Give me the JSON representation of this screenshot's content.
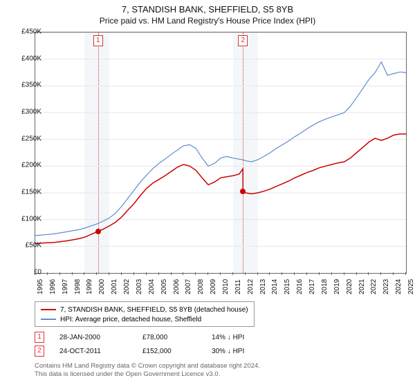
{
  "title": "7, STANDISH BANK, SHEFFIELD, S5 8YB",
  "subtitle": "Price paid vs. HM Land Registry's House Price Index (HPI)",
  "chart": {
    "type": "line",
    "background_color": "#ffffff",
    "grid_color": "#e6e6e6",
    "axis_color": "#666666",
    "y_axis": {
      "min": 0,
      "max": 450000,
      "tick_step": 50000,
      "labels": [
        "£0",
        "£50K",
        "£100K",
        "£150K",
        "£200K",
        "£250K",
        "£300K",
        "£350K",
        "£400K",
        "£450K"
      ]
    },
    "x_axis": {
      "min": 1995,
      "max": 2025,
      "labels": [
        "1995",
        "1996",
        "1997",
        "1998",
        "1999",
        "2000",
        "2001",
        "2002",
        "2003",
        "2004",
        "2005",
        "2006",
        "2007",
        "2008",
        "2009",
        "2010",
        "2011",
        "2012",
        "2013",
        "2014",
        "2015",
        "2016",
        "2017",
        "2018",
        "2019",
        "2020",
        "2021",
        "2022",
        "2023",
        "2024",
        "2025"
      ]
    },
    "shaded_regions": [
      {
        "x_start": 1999.0,
        "x_end": 2001.0,
        "color": "#eef3f8"
      },
      {
        "x_start": 2011.0,
        "x_end": 2013.0,
        "color": "#eef3f8"
      }
    ],
    "markers": [
      {
        "index": "1",
        "x": 2000.08,
        "y": 78000,
        "box_color": "#d33333",
        "dot_color": "#cc0000"
      },
      {
        "index": "2",
        "x": 2011.81,
        "y": 152000,
        "box_color": "#d33333",
        "dot_color": "#cc0000"
      }
    ],
    "series": [
      {
        "name": "property",
        "label": "7, STANDISH BANK, SHEFFIELD, S5 8YB (detached house)",
        "color": "#cc0000",
        "line_width": 1.5,
        "data": [
          [
            1995.0,
            55000
          ],
          [
            1995.5,
            56000
          ],
          [
            1996.0,
            56500
          ],
          [
            1996.5,
            57000
          ],
          [
            1997.0,
            58500
          ],
          [
            1997.5,
            60000
          ],
          [
            1998.0,
            62000
          ],
          [
            1998.5,
            64000
          ],
          [
            1999.0,
            67000
          ],
          [
            1999.5,
            72000
          ],
          [
            2000.0,
            77000
          ],
          [
            2000.08,
            78000
          ],
          [
            2000.5,
            82000
          ],
          [
            2001.0,
            88000
          ],
          [
            2001.5,
            95000
          ],
          [
            2002.0,
            105000
          ],
          [
            2002.5,
            118000
          ],
          [
            2003.0,
            130000
          ],
          [
            2003.5,
            145000
          ],
          [
            2004.0,
            158000
          ],
          [
            2004.5,
            168000
          ],
          [
            2005.0,
            175000
          ],
          [
            2005.5,
            182000
          ],
          [
            2006.0,
            190000
          ],
          [
            2006.5,
            198000
          ],
          [
            2007.0,
            203000
          ],
          [
            2007.5,
            200000
          ],
          [
            2008.0,
            192000
          ],
          [
            2008.5,
            178000
          ],
          [
            2009.0,
            165000
          ],
          [
            2009.5,
            170000
          ],
          [
            2010.0,
            178000
          ],
          [
            2010.5,
            180000
          ],
          [
            2011.0,
            182000
          ],
          [
            2011.5,
            185000
          ],
          [
            2011.8,
            195000
          ],
          [
            2011.81,
            152000
          ],
          [
            2012.0,
            150000
          ],
          [
            2012.5,
            148000
          ],
          [
            2013.0,
            150000
          ],
          [
            2013.5,
            153000
          ],
          [
            2014.0,
            157000
          ],
          [
            2014.5,
            162000
          ],
          [
            2015.0,
            167000
          ],
          [
            2015.5,
            172000
          ],
          [
            2016.0,
            178000
          ],
          [
            2016.5,
            183000
          ],
          [
            2017.0,
            188000
          ],
          [
            2017.5,
            192000
          ],
          [
            2018.0,
            197000
          ],
          [
            2018.5,
            200000
          ],
          [
            2019.0,
            203000
          ],
          [
            2019.5,
            206000
          ],
          [
            2020.0,
            208000
          ],
          [
            2020.5,
            215000
          ],
          [
            2021.0,
            225000
          ],
          [
            2021.5,
            235000
          ],
          [
            2022.0,
            245000
          ],
          [
            2022.5,
            252000
          ],
          [
            2023.0,
            248000
          ],
          [
            2023.5,
            252000
          ],
          [
            2024.0,
            258000
          ],
          [
            2024.5,
            260000
          ],
          [
            2025.0,
            260000
          ]
        ]
      },
      {
        "name": "hpi",
        "label": "HPI: Average price, detached house, Sheffield",
        "color": "#5b8dce",
        "line_width": 1.2,
        "data": [
          [
            1995.0,
            70000
          ],
          [
            1995.5,
            71000
          ],
          [
            1996.0,
            72000
          ],
          [
            1996.5,
            73000
          ],
          [
            1997.0,
            75000
          ],
          [
            1997.5,
            77000
          ],
          [
            1998.0,
            79000
          ],
          [
            1998.5,
            81000
          ],
          [
            1999.0,
            84000
          ],
          [
            1999.5,
            88000
          ],
          [
            2000.0,
            92000
          ],
          [
            2000.5,
            97000
          ],
          [
            2001.0,
            103000
          ],
          [
            2001.5,
            112000
          ],
          [
            2002.0,
            125000
          ],
          [
            2002.5,
            140000
          ],
          [
            2003.0,
            155000
          ],
          [
            2003.5,
            170000
          ],
          [
            2004.0,
            183000
          ],
          [
            2004.5,
            195000
          ],
          [
            2005.0,
            205000
          ],
          [
            2005.5,
            213000
          ],
          [
            2006.0,
            222000
          ],
          [
            2006.5,
            230000
          ],
          [
            2007.0,
            238000
          ],
          [
            2007.5,
            240000
          ],
          [
            2008.0,
            233000
          ],
          [
            2008.5,
            215000
          ],
          [
            2009.0,
            200000
          ],
          [
            2009.5,
            205000
          ],
          [
            2010.0,
            215000
          ],
          [
            2010.5,
            218000
          ],
          [
            2011.0,
            215000
          ],
          [
            2011.5,
            213000
          ],
          [
            2011.81,
            212000
          ],
          [
            2012.0,
            210000
          ],
          [
            2012.5,
            208000
          ],
          [
            2013.0,
            212000
          ],
          [
            2013.5,
            218000
          ],
          [
            2014.0,
            225000
          ],
          [
            2014.5,
            233000
          ],
          [
            2015.0,
            240000
          ],
          [
            2015.5,
            247000
          ],
          [
            2016.0,
            255000
          ],
          [
            2016.5,
            262000
          ],
          [
            2017.0,
            270000
          ],
          [
            2017.5,
            277000
          ],
          [
            2018.0,
            283000
          ],
          [
            2018.5,
            288000
          ],
          [
            2019.0,
            292000
          ],
          [
            2019.5,
            296000
          ],
          [
            2020.0,
            300000
          ],
          [
            2020.5,
            312000
          ],
          [
            2021.0,
            328000
          ],
          [
            2021.5,
            345000
          ],
          [
            2022.0,
            362000
          ],
          [
            2022.5,
            375000
          ],
          [
            2023.0,
            395000
          ],
          [
            2023.5,
            370000
          ],
          [
            2024.0,
            373000
          ],
          [
            2024.5,
            376000
          ],
          [
            2025.0,
            375000
          ]
        ]
      }
    ]
  },
  "legend": {
    "items": [
      {
        "color": "#cc0000",
        "label": "7, STANDISH BANK, SHEFFIELD, S5 8YB (detached house)"
      },
      {
        "color": "#5b8dce",
        "label": "HPI: Average price, detached house, Sheffield"
      }
    ]
  },
  "sales": [
    {
      "index": "1",
      "date": "28-JAN-2000",
      "price": "£78,000",
      "diff": "14% ↓ HPI"
    },
    {
      "index": "2",
      "date": "24-OCT-2011",
      "price": "£152,000",
      "diff": "30% ↓ HPI"
    }
  ],
  "attribution": {
    "line1": "Contains HM Land Registry data © Crown copyright and database right 2024.",
    "line2": "This data is licensed under the Open Government Licence v3.0."
  }
}
